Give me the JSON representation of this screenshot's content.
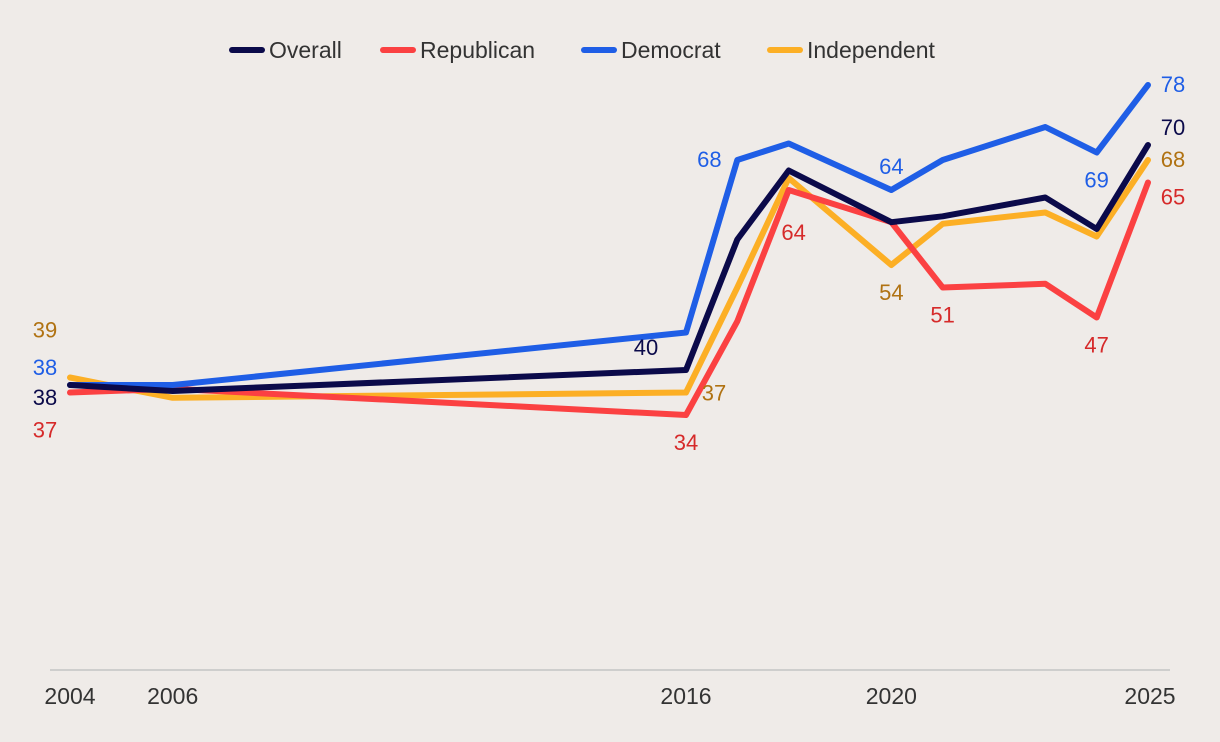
{
  "chart_data": {
    "type": "line",
    "title": "",
    "xlabel": "",
    "ylabel": "",
    "x": [
      2004,
      2006,
      2016,
      2017,
      2018,
      2020,
      2021,
      2023,
      2024,
      2025
    ],
    "xlim": [
      2004,
      2025
    ],
    "ylim": [
      0,
      80
    ],
    "x_ticks": [
      2004,
      2006,
      2016,
      2020,
      2025
    ],
    "x_tick_labels": [
      "2004",
      "2006",
      "2016",
      "2020",
      "2025"
    ],
    "grid": false,
    "legend_position": "top-center",
    "series": [
      {
        "name": "Overall",
        "color": "#0b0a4a",
        "values": [
          38,
          37.2,
          40,
          57.4,
          66.6,
          59.7,
          60.5,
          63,
          58.8,
          70
        ]
      },
      {
        "name": "Republican",
        "color": "#fb4142",
        "values": [
          37,
          37.5,
          34,
          46.5,
          64,
          59.7,
          51,
          51.5,
          47,
          65
        ]
      },
      {
        "name": "Democrat",
        "color": "#1f5ee6",
        "values": [
          38,
          38,
          45,
          68,
          70.2,
          64,
          68,
          72.4,
          69,
          78
        ]
      },
      {
        "name": "Independent",
        "color": "#fcaf25",
        "values": [
          39,
          36.3,
          37,
          51,
          65.6,
          54,
          59.5,
          61,
          57.8,
          68
        ]
      }
    ],
    "annotations": [
      {
        "series": "Independent",
        "x": 2004,
        "text": "39",
        "color": "#b07212"
      },
      {
        "series": "Democrat",
        "x": 2004,
        "text": "38",
        "color": "#1f5ee6"
      },
      {
        "series": "Overall",
        "x": 2004,
        "text": "38",
        "color": "#0b0a4a"
      },
      {
        "series": "Republican",
        "x": 2004,
        "text": "37",
        "color": "#d62a2a"
      },
      {
        "series": "Overall",
        "x": 2016,
        "text": "40",
        "color": "#0b0a4a"
      },
      {
        "series": "Independent",
        "x": 2016,
        "text": "37",
        "color": "#b07212"
      },
      {
        "series": "Republican",
        "x": 2016,
        "text": "34",
        "color": "#d62a2a"
      },
      {
        "series": "Democrat",
        "x": 2017,
        "text": "68",
        "color": "#1f5ee6"
      },
      {
        "series": "Republican",
        "x": 2018,
        "text": "64",
        "color": "#d62a2a"
      },
      {
        "series": "Democrat",
        "x": 2020,
        "text": "64",
        "color": "#1f5ee6"
      },
      {
        "series": "Independent",
        "x": 2020,
        "text": "54",
        "color": "#b07212"
      },
      {
        "series": "Republican",
        "x": 2021,
        "text": "51",
        "color": "#d62a2a"
      },
      {
        "series": "Democrat",
        "x": 2024,
        "text": "69",
        "color": "#1f5ee6"
      },
      {
        "series": "Republican",
        "x": 2024,
        "text": "47",
        "color": "#d62a2a"
      },
      {
        "series": "Democrat",
        "x": 2025,
        "text": "78",
        "color": "#1f5ee6"
      },
      {
        "series": "Overall",
        "x": 2025,
        "text": "70",
        "color": "#0b0a4a"
      },
      {
        "series": "Independent",
        "x": 2025,
        "text": "68",
        "color": "#b07212"
      },
      {
        "series": "Republican",
        "x": 2025,
        "text": "65",
        "color": "#d62a2a"
      }
    ]
  }
}
